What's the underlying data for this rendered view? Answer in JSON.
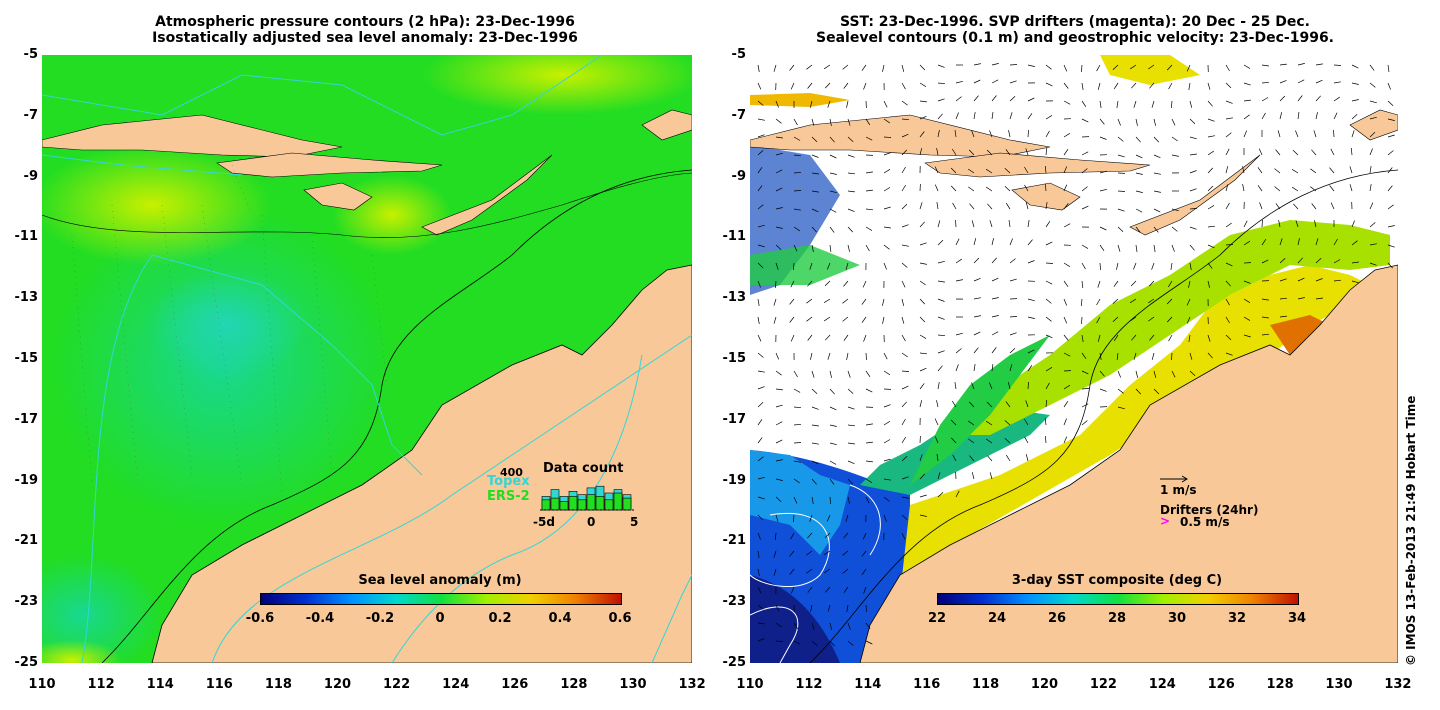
{
  "left_panel": {
    "title_line1": "Atmospheric pressure contours (2 hPa): 23-Dec-1996",
    "title_line2": "Isostatically adjusted sea level anomaly: 23-Dec-1996",
    "y_ticks": [
      "-5",
      "-7",
      "-9",
      "-11",
      "-13",
      "-15",
      "-17",
      "-19",
      "-21",
      "-23",
      "-25"
    ],
    "x_ticks": [
      "110",
      "112",
      "114",
      "116",
      "118",
      "120",
      "122",
      "124",
      "126",
      "128",
      "130",
      "132"
    ],
    "colorbar": {
      "title": "Sea level anomaly (m)",
      "ticks": [
        "-0.6",
        "-0.4",
        "-0.2",
        "0",
        "0.2",
        "0.4",
        "0.6"
      ],
      "range": [
        -0.6,
        0.6
      ]
    },
    "data_count": {
      "title": "Data count",
      "max_label": "400",
      "sat1": "Topex",
      "sat2": "ERS-2",
      "x_labels": [
        "-5d",
        "0",
        "5"
      ],
      "bars_topex": [
        0.4,
        0.6,
        0.4,
        0.55,
        0.45,
        0.65,
        0.7,
        0.5,
        0.6,
        0.45
      ],
      "bars_ers2": [
        0.3,
        0.35,
        0.25,
        0.4,
        0.3,
        0.45,
        0.4,
        0.3,
        0.5,
        0.35
      ]
    }
  },
  "right_panel": {
    "title_line1": "SST: 23-Dec-1996. SVP drifters (magenta): 20 Dec - 25 Dec.",
    "title_line2": "Sealevel contours (0.1 m) and geostrophic velocity: 23-Dec-1996.",
    "y_ticks": [
      "-5",
      "-7",
      "-9",
      "-11",
      "-13",
      "-15",
      "-17",
      "-19",
      "-21",
      "-23",
      "-25"
    ],
    "x_ticks": [
      "110",
      "112",
      "114",
      "116",
      "118",
      "120",
      "122",
      "124",
      "126",
      "128",
      "130",
      "132"
    ],
    "colorbar": {
      "title": "3-day SST composite (deg C)",
      "ticks": [
        "22",
        "24",
        "26",
        "28",
        "30",
        "32",
        "34"
      ],
      "range": [
        22,
        34
      ]
    },
    "velocity_legend": "1 m/s",
    "drifters_legend": "Drifters (24hr)",
    "drifters_speed": "0.5 m/s"
  },
  "credit": "© IMOS 13-Feb-2013 21:49 Hobart Time",
  "colors": {
    "land": "#f8c898",
    "ocean_green": "#22dd22",
    "sst_white": "#ffffff",
    "coast_contour": "#000000",
    "pressure_contour": "#33d6d6",
    "magenta": "#ff00ff"
  }
}
